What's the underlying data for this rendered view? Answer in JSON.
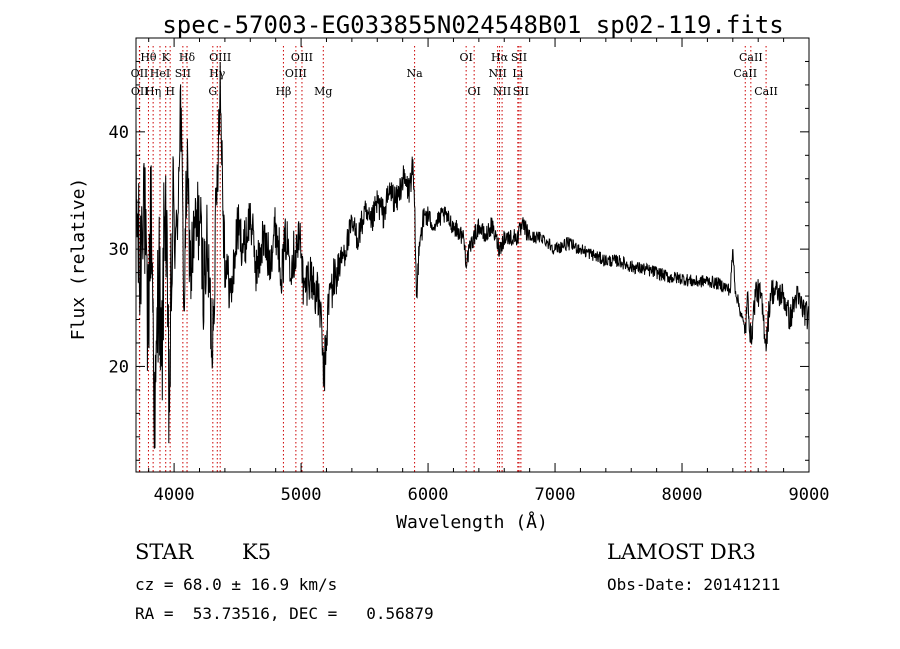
{
  "chart_data": {
    "type": "line",
    "title": "spec-57003-EG033855N024548B01_sp02-119.fits",
    "xlabel": "Wavelength (Å)",
    "ylabel": "Flux (relative)",
    "xlim": [
      3700,
      9000
    ],
    "ylim": [
      11,
      48
    ],
    "x_ticks": [
      4000,
      5000,
      6000,
      7000,
      8000,
      9000
    ],
    "y_ticks": [
      20,
      30,
      40
    ],
    "grid": false,
    "color": "#000000",
    "line_color": "#cc0000",
    "spectrum_anchors": [
      [
        3700,
        35
      ],
      [
        3730,
        27
      ],
      [
        3760,
        37
      ],
      [
        3790,
        22
      ],
      [
        3820,
        34
      ],
      [
        3850,
        14
      ],
      [
        3880,
        30
      ],
      [
        3900,
        18
      ],
      [
        3930,
        36
      ],
      [
        3960,
        16
      ],
      [
        3990,
        33
      ],
      [
        4020,
        30
      ],
      [
        4050,
        43
      ],
      [
        4080,
        25
      ],
      [
        4100,
        37
      ],
      [
        4130,
        28
      ],
      [
        4160,
        31
      ],
      [
        4200,
        33
      ],
      [
        4230,
        27
      ],
      [
        4260,
        30
      ],
      [
        4300,
        22
      ],
      [
        4340,
        36
      ],
      [
        4360,
        45
      ],
      [
        4400,
        29
      ],
      [
        4450,
        26
      ],
      [
        4500,
        32
      ],
      [
        4550,
        30
      ],
      [
        4600,
        33
      ],
      [
        4650,
        28
      ],
      [
        4700,
        31
      ],
      [
        4750,
        29
      ],
      [
        4800,
        32
      ],
      [
        4850,
        28
      ],
      [
        4880,
        31
      ],
      [
        4920,
        29
      ],
      [
        4960,
        30
      ],
      [
        5000,
        31
      ],
      [
        5020,
        26
      ],
      [
        5060,
        28
      ],
      [
        5100,
        27
      ],
      [
        5150,
        25
      ],
      [
        5180,
        19
      ],
      [
        5220,
        26
      ],
      [
        5280,
        28
      ],
      [
        5350,
        30
      ],
      [
        5400,
        32
      ],
      [
        5450,
        31
      ],
      [
        5500,
        33
      ],
      [
        5550,
        32
      ],
      [
        5600,
        34
      ],
      [
        5650,
        33
      ],
      [
        5700,
        35
      ],
      [
        5750,
        34
      ],
      [
        5800,
        36
      ],
      [
        5850,
        35
      ],
      [
        5880,
        37
      ],
      [
        5900,
        31
      ],
      [
        5910,
        25
      ],
      [
        5930,
        31
      ],
      [
        5980,
        33
      ],
      [
        6050,
        32
      ],
      [
        6120,
        33
      ],
      [
        6200,
        32
      ],
      [
        6280,
        31
      ],
      [
        6300,
        29
      ],
      [
        6360,
        31
      ],
      [
        6400,
        32
      ],
      [
        6450,
        31
      ],
      [
        6500,
        32
      ],
      [
        6563,
        30
      ],
      [
        6600,
        31
      ],
      [
        6700,
        31
      ],
      [
        6750,
        32
      ],
      [
        6800,
        31
      ],
      [
        6900,
        31
      ],
      [
        7000,
        30
      ],
      [
        7100,
        30.5
      ],
      [
        7200,
        30
      ],
      [
        7300,
        29.5
      ],
      [
        7400,
        29
      ],
      [
        7500,
        29
      ],
      [
        7600,
        28.5
      ],
      [
        7700,
        28.3
      ],
      [
        7800,
        28
      ],
      [
        7900,
        27.6
      ],
      [
        8000,
        27.5
      ],
      [
        8100,
        27.2
      ],
      [
        8200,
        27.3
      ],
      [
        8300,
        27
      ],
      [
        8380,
        26.5
      ],
      [
        8400,
        30
      ],
      [
        8420,
        26.5
      ],
      [
        8498,
        23
      ],
      [
        8520,
        26
      ],
      [
        8542,
        22
      ],
      [
        8580,
        26.5
      ],
      [
        8620,
        26
      ],
      [
        8662,
        22
      ],
      [
        8700,
        26.5
      ],
      [
        8800,
        26
      ],
      [
        8850,
        24
      ],
      [
        8900,
        26
      ],
      [
        8950,
        25
      ],
      [
        9000,
        24
      ]
    ],
    "noise_regions": [
      [
        3700,
        4000,
        6.5
      ],
      [
        4000,
        4400,
        4.0
      ],
      [
        4400,
        5300,
        2.2
      ],
      [
        5300,
        6000,
        1.3
      ],
      [
        6000,
        6800,
        0.8
      ],
      [
        6800,
        8500,
        0.55
      ],
      [
        8500,
        9000,
        1.2
      ]
    ],
    "lines": [
      {
        "name": "OII",
        "wave": 3727,
        "row": 2
      },
      {
        "name": "OII",
        "wave": 3729,
        "row": 3
      },
      {
        "name": "Hθ",
        "wave": 3798,
        "row": 1
      },
      {
        "name": "Hη",
        "wave": 3835,
        "row": 3
      },
      {
        "name": "HeI",
        "wave": 3889,
        "row": 2
      },
      {
        "name": "K",
        "wave": 3934,
        "row": 1
      },
      {
        "name": "H",
        "wave": 3969,
        "row": 3
      },
      {
        "name": "SII",
        "wave": 4069,
        "row": 2
      },
      {
        "name": "Hδ",
        "wave": 4102,
        "row": 1
      },
      {
        "name": "G",
        "wave": 4305,
        "row": 3
      },
      {
        "name": "Hγ",
        "wave": 4340,
        "row": 2
      },
      {
        "name": "OIII",
        "wave": 4363,
        "row": 1
      },
      {
        "name": "Hβ",
        "wave": 4861,
        "row": 3
      },
      {
        "name": "OIII",
        "wave": 4959,
        "row": 2
      },
      {
        "name": "OIII",
        "wave": 5007,
        "row": 1
      },
      {
        "name": "Mg",
        "wave": 5175,
        "row": 3
      },
      {
        "name": "Na",
        "wave": 5894,
        "row": 2
      },
      {
        "name": "OI",
        "wave": 6300,
        "row": 1
      },
      {
        "name": "OI",
        "wave": 6363,
        "row": 3
      },
      {
        "name": "NII",
        "wave": 6548,
        "row": 2
      },
      {
        "name": "Hα",
        "wave": 6563,
        "row": 1
      },
      {
        "name": "NII",
        "wave": 6583,
        "row": 3
      },
      {
        "name": "Li",
        "wave": 6707,
        "row": 2
      },
      {
        "name": "SII",
        "wave": 6716,
        "row": 1
      },
      {
        "name": "SII",
        "wave": 6731,
        "row": 3
      },
      {
        "name": "CaII",
        "wave": 8498,
        "row": 2
      },
      {
        "name": "CaII",
        "wave": 8542,
        "row": 1
      },
      {
        "name": "CaII",
        "wave": 8662,
        "row": 3
      }
    ]
  },
  "info": {
    "object_class": "STAR",
    "subclass": "K5",
    "survey": "LAMOST DR3",
    "cz": "cz = 68.0 ± 16.9 km/s",
    "obs_date": "Obs-Date: 20141211",
    "coords": "RA =  53.73516, DEC =   0.56879"
  }
}
